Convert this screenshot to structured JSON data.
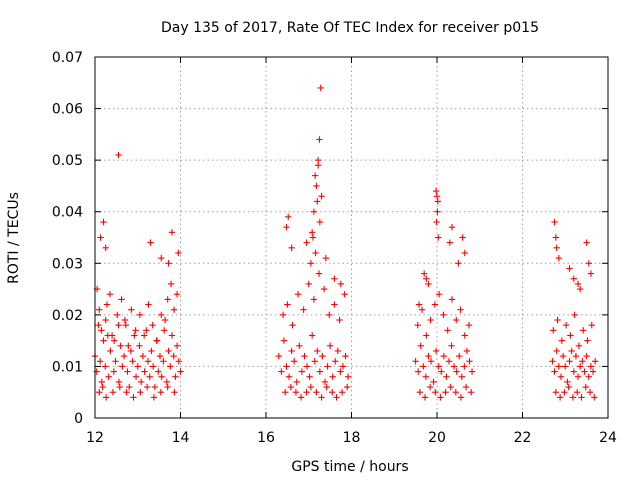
{
  "chart_data": {
    "type": "scatter",
    "title": "Day 135 of 2017, Rate Of TEC Index for receiver p015",
    "xlabel": "GPS time / hours",
    "ylabel": "ROTI / TECUs",
    "xlim": [
      12,
      24
    ],
    "ylim": [
      0,
      0.07
    ],
    "x_ticks": [
      12,
      14,
      16,
      18,
      20,
      22,
      24
    ],
    "x_tick_labels": [
      "12",
      "14",
      "16",
      "18",
      "20",
      "22",
      "24"
    ],
    "y_ticks": [
      0,
      0.01,
      0.02,
      0.03,
      0.04,
      0.05,
      0.06,
      0.07
    ],
    "y_tick_labels": [
      "0",
      "0.01",
      "0.02",
      "0.03",
      "0.04",
      "0.05",
      "0.06",
      "0.07"
    ],
    "grid": true,
    "marker": "+",
    "color": "#ff0000",
    "series": [
      {
        "name": "ROTI",
        "x": [
          12.0,
          12.04,
          12.08,
          12.12,
          12.16,
          12.2,
          12.24,
          12.28,
          12.32,
          12.36,
          12.4,
          12.44,
          12.48,
          12.52,
          12.56,
          12.6,
          12.64,
          12.68,
          12.72,
          12.76,
          12.8,
          12.84,
          12.88,
          12.92,
          12.96,
          13.0,
          13.04,
          13.08,
          13.12,
          13.16,
          13.2,
          13.24,
          13.28,
          13.32,
          13.36,
          13.4,
          13.44,
          13.48,
          13.52,
          13.56,
          13.6,
          13.64,
          13.68,
          13.72,
          13.76,
          13.8,
          13.84,
          13.88,
          13.92,
          13.96,
          14.0,
          12.05,
          12.1,
          12.15,
          12.25,
          12.3,
          12.35,
          12.45,
          12.55,
          12.62,
          12.7,
          12.78,
          12.85,
          12.95,
          13.05,
          13.15,
          13.25,
          13.35,
          13.45,
          13.55,
          13.62,
          13.7,
          13.78,
          13.85,
          13.92,
          12.1,
          12.18,
          12.26,
          12.42,
          12.58,
          12.74,
          12.9,
          13.06,
          13.22,
          13.38,
          13.54,
          13.7,
          13.86,
          12.55,
          12.13,
          12.2,
          13.3,
          13.55,
          13.8,
          13.95,
          13.72,
          12.25,
          16.3,
          16.36,
          16.42,
          16.48,
          16.54,
          16.6,
          16.66,
          16.72,
          16.78,
          16.84,
          16.9,
          16.96,
          17.02,
          17.08,
          17.14,
          17.2,
          17.26,
          17.32,
          17.38,
          17.44,
          17.5,
          17.56,
          17.62,
          17.68,
          17.74,
          17.8,
          17.86,
          17.92,
          16.4,
          16.5,
          16.62,
          16.75,
          16.88,
          17.0,
          17.12,
          17.24,
          17.36,
          17.48,
          17.6,
          17.72,
          17.84,
          16.45,
          16.58,
          16.7,
          16.82,
          16.95,
          17.05,
          17.18,
          17.3,
          17.42,
          17.55,
          17.65,
          17.78,
          17.9,
          17.05,
          17.08,
          17.12,
          17.15,
          17.18,
          17.2,
          17.22,
          17.25,
          17.28,
          17.3,
          17.22,
          17.26,
          17.1,
          17.16,
          16.48,
          16.52,
          16.6,
          16.95,
          17.4,
          17.6,
          17.75,
          19.5,
          19.56,
          19.62,
          19.68,
          19.74,
          19.8,
          19.86,
          19.92,
          19.98,
          20.04,
          20.1,
          20.16,
          20.22,
          20.28,
          20.34,
          20.4,
          20.46,
          20.52,
          20.58,
          20.64,
          20.7,
          20.76,
          20.82,
          19.55,
          19.65,
          19.75,
          19.85,
          19.95,
          20.05,
          20.15,
          20.25,
          20.35,
          20.45,
          20.55,
          20.65,
          20.75,
          19.6,
          19.72,
          19.84,
          19.96,
          20.08,
          20.2,
          20.32,
          20.44,
          20.56,
          20.68,
          20.8,
          19.98,
          20.0,
          20.02,
          20.01,
          19.99,
          20.03,
          19.7,
          19.75,
          19.8,
          20.35,
          20.3,
          20.6,
          20.65,
          20.5,
          19.58,
          22.7,
          22.75,
          22.8,
          22.85,
          22.9,
          22.95,
          23.0,
          23.05,
          23.1,
          23.15,
          23.2,
          23.25,
          23.3,
          23.35,
          23.4,
          23.45,
          23.5,
          23.55,
          23.6,
          23.65,
          23.7,
          22.72,
          22.82,
          22.92,
          23.02,
          23.12,
          23.22,
          23.32,
          23.42,
          23.52,
          23.62,
          22.78,
          22.88,
          22.98,
          23.08,
          23.18,
          23.28,
          23.38,
          23.48,
          23.58,
          23.68,
          22.75,
          22.78,
          22.8,
          22.85,
          23.1,
          23.2,
          23.3,
          23.5,
          23.55,
          23.6,
          23.35
        ],
        "y": [
          0.012,
          0.009,
          0.018,
          0.011,
          0.007,
          0.015,
          0.01,
          0.022,
          0.008,
          0.013,
          0.016,
          0.009,
          0.011,
          0.02,
          0.007,
          0.014,
          0.01,
          0.012,
          0.018,
          0.009,
          0.006,
          0.013,
          0.011,
          0.016,
          0.008,
          0.01,
          0.014,
          0.007,
          0.012,
          0.009,
          0.017,
          0.011,
          0.008,
          0.013,
          0.01,
          0.006,
          0.015,
          0.009,
          0.012,
          0.008,
          0.011,
          0.019,
          0.007,
          0.013,
          0.01,
          0.016,
          0.012,
          0.008,
          0.014,
          0.011,
          0.009,
          0.025,
          0.021,
          0.017,
          0.019,
          0.016,
          0.024,
          0.015,
          0.018,
          0.023,
          0.019,
          0.014,
          0.021,
          0.017,
          0.02,
          0.016,
          0.022,
          0.018,
          0.015,
          0.02,
          0.017,
          0.023,
          0.026,
          0.021,
          0.024,
          0.005,
          0.006,
          0.004,
          0.005,
          0.006,
          0.005,
          0.004,
          0.005,
          0.006,
          0.004,
          0.005,
          0.006,
          0.005,
          0.051,
          0.035,
          0.038,
          0.034,
          0.031,
          0.036,
          0.032,
          0.03,
          0.033,
          0.012,
          0.009,
          0.015,
          0.01,
          0.008,
          0.013,
          0.011,
          0.007,
          0.014,
          0.009,
          0.012,
          0.01,
          0.008,
          0.016,
          0.011,
          0.013,
          0.009,
          0.012,
          0.007,
          0.01,
          0.014,
          0.008,
          0.011,
          0.013,
          0.009,
          0.01,
          0.012,
          0.008,
          0.02,
          0.022,
          0.018,
          0.024,
          0.021,
          0.026,
          0.023,
          0.028,
          0.025,
          0.02,
          0.022,
          0.019,
          0.024,
          0.005,
          0.006,
          0.005,
          0.004,
          0.005,
          0.006,
          0.005,
          0.004,
          0.006,
          0.005,
          0.004,
          0.005,
          0.006,
          0.03,
          0.036,
          0.04,
          0.047,
          0.045,
          0.042,
          0.049,
          0.054,
          0.064,
          0.043,
          0.05,
          0.038,
          0.035,
          0.032,
          0.037,
          0.039,
          0.033,
          0.034,
          0.031,
          0.027,
          0.026,
          0.011,
          0.009,
          0.014,
          0.01,
          0.008,
          0.012,
          0.011,
          0.007,
          0.013,
          0.01,
          0.009,
          0.012,
          0.008,
          0.011,
          0.014,
          0.01,
          0.009,
          0.012,
          0.008,
          0.01,
          0.013,
          0.011,
          0.009,
          0.018,
          0.021,
          0.016,
          0.019,
          0.022,
          0.024,
          0.02,
          0.017,
          0.023,
          0.019,
          0.021,
          0.016,
          0.018,
          0.005,
          0.004,
          0.006,
          0.005,
          0.004,
          0.005,
          0.006,
          0.005,
          0.004,
          0.006,
          0.005,
          0.044,
          0.043,
          0.042,
          0.04,
          0.038,
          0.035,
          0.028,
          0.027,
          0.026,
          0.037,
          0.034,
          0.035,
          0.032,
          0.03,
          0.022,
          0.011,
          0.009,
          0.013,
          0.01,
          0.008,
          0.012,
          0.01,
          0.007,
          0.011,
          0.013,
          0.009,
          0.012,
          0.008,
          0.01,
          0.011,
          0.009,
          0.012,
          0.008,
          0.01,
          0.009,
          0.011,
          0.017,
          0.019,
          0.015,
          0.018,
          0.016,
          0.02,
          0.014,
          0.017,
          0.015,
          0.018,
          0.005,
          0.004,
          0.005,
          0.006,
          0.004,
          0.005,
          0.004,
          0.006,
          0.005,
          0.004,
          0.038,
          0.035,
          0.033,
          0.031,
          0.029,
          0.027,
          0.026,
          0.034,
          0.03,
          0.028,
          0.025
        ]
      }
    ]
  }
}
